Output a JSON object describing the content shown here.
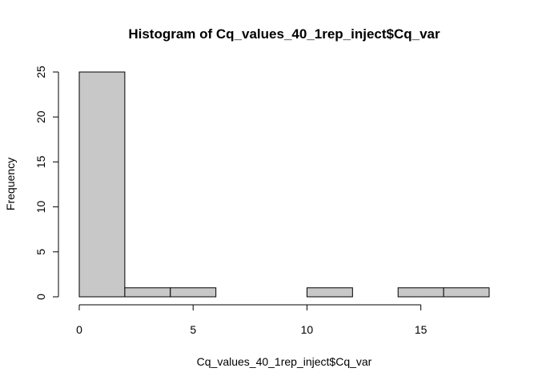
{
  "chart_data": {
    "type": "bar",
    "title": "Histogram of Cq_values_40_1rep_inject$Cq_var",
    "xlabel": "Cq_values_40_1rep_inject$Cq_var",
    "ylabel": "Frequency",
    "bins": [
      {
        "start": 0,
        "end": 2,
        "count": 25
      },
      {
        "start": 2,
        "end": 4,
        "count": 1
      },
      {
        "start": 4,
        "end": 6,
        "count": 1
      },
      {
        "start": 6,
        "end": 8,
        "count": 0
      },
      {
        "start": 8,
        "end": 10,
        "count": 0
      },
      {
        "start": 10,
        "end": 12,
        "count": 1
      },
      {
        "start": 12,
        "end": 14,
        "count": 0
      },
      {
        "start": 14,
        "end": 16,
        "count": 1
      },
      {
        "start": 16,
        "end": 18,
        "count": 1
      }
    ],
    "x_ticks": [
      "0",
      "5",
      "10",
      "15"
    ],
    "y_ticks": [
      "0",
      "5",
      "10",
      "15",
      "20",
      "25"
    ],
    "xlim": [
      0,
      18
    ],
    "ylim": [
      0,
      25
    ],
    "grid": false,
    "bar_fill": "#c8c8c8",
    "bar_stroke": "#000000"
  }
}
